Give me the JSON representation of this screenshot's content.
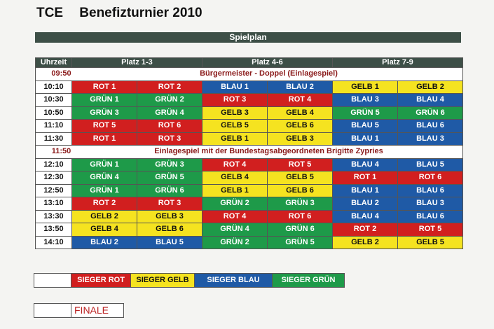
{
  "header": {
    "club": "TCE",
    "event": "Benefizturnier 2010"
  },
  "plan_label": "Spielplan",
  "columns": {
    "time": "Uhrzeit",
    "g1": "Platz 1-3",
    "g2": "Platz 4-6",
    "g3": "Platz 7-9"
  },
  "rows": [
    {
      "type": "sep",
      "time": "09:50",
      "label": "Bürgermeister - Doppel (Einlagespiel)"
    },
    {
      "type": "match",
      "time": "10:10",
      "cells": [
        "ROT 1",
        "ROT 2",
        "BLAU 1",
        "BLAU 2",
        "GELB 1",
        "GELB 2"
      ]
    },
    {
      "type": "match",
      "time": "10:30",
      "cells": [
        "GRÜN 1",
        "GRÜN 2",
        "ROT 3",
        "ROT 4",
        "BLAU 3",
        "BLAU 4"
      ]
    },
    {
      "type": "match",
      "time": "10:50",
      "cells": [
        "GRÜN 3",
        "GRÜN 4",
        "GELB 3",
        "GELB 4",
        "GRÜN 5",
        "GRÜN 6"
      ]
    },
    {
      "type": "match",
      "time": "11:10",
      "cells": [
        "ROT 5",
        "ROT 6",
        "GELB 5",
        "GELB 6",
        "BLAU 5",
        "BLAU 6"
      ]
    },
    {
      "type": "match",
      "time": "11:30",
      "cells": [
        "ROT 1",
        "ROT 3",
        "GELB 1",
        "GELB 3",
        "BLAU 1",
        "BLAU 3"
      ]
    },
    {
      "type": "sep",
      "time": "11:50",
      "label": "Einlagespiel mit der Bundestagsabgeordneten Brigitte Zypries"
    },
    {
      "type": "match",
      "time": "12:10",
      "cells": [
        "GRÜN 1",
        "GRÜN 3",
        "ROT 4",
        "ROT 5",
        "BLAU 4",
        "BLAU 5"
      ]
    },
    {
      "type": "match",
      "time": "12:30",
      "cells": [
        "GRÜN 4",
        "GRÜN 5",
        "GELB 4",
        "GELB 5",
        "ROT 1",
        "ROT 6"
      ]
    },
    {
      "type": "match",
      "time": "12:50",
      "cells": [
        "GRÜN 1",
        "GRÜN 6",
        "GELB 1",
        "GELB 6",
        "BLAU 1",
        "BLAU 6"
      ]
    },
    {
      "type": "match",
      "time": "13:10",
      "cells": [
        "ROT 2",
        "ROT 3",
        "GRÜN 2",
        "GRÜN 3",
        "BLAU 2",
        "BLAU 3"
      ]
    },
    {
      "type": "match",
      "time": "13:30",
      "cells": [
        "GELB 2",
        "GELB 3",
        "ROT 4",
        "ROT 6",
        "BLAU 4",
        "BLAU 6"
      ]
    },
    {
      "type": "match",
      "time": "13:50",
      "cells": [
        "GELB 4",
        "GELB 6",
        "GRÜN 4",
        "GRÜN 6",
        "ROT 2",
        "ROT 5"
      ]
    },
    {
      "type": "match",
      "time": "14:10",
      "cells": [
        "BLAU 2",
        "BLAU 5",
        "GRÜN 2",
        "GRÜN 5",
        "GELB 2",
        "GELB 5"
      ]
    }
  ],
  "legend": {
    "rot": "SIEGER ROT",
    "gelb": "SIEGER GELB",
    "blau": "SIEGER BLAU",
    "gruen": "SIEGER GRÜN"
  },
  "finale": "FINALE",
  "colors": {
    "rot": "#d11f1f",
    "gruen": "#1e9a49",
    "blau": "#1f5aa6",
    "gelb": "#f5e320",
    "header": "#3d4f47"
  }
}
